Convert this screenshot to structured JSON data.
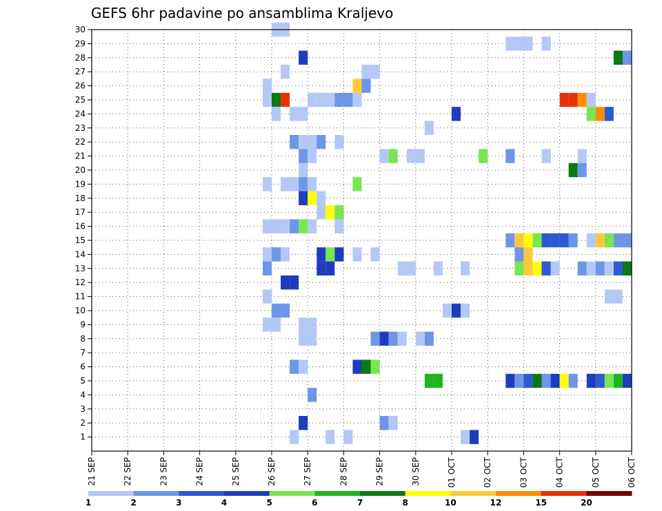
{
  "chart_data": {
    "type": "heatmap",
    "title": "GEFS 6hr padavine po ansamblima Kraljevo",
    "xlabel": "",
    "ylabel": "",
    "x_ticks": [
      "21 SEP",
      "22 SEP",
      "23 SEP",
      "24 SEP",
      "25 SEP",
      "26 SEP",
      "27 SEP",
      "28 SEP",
      "29 SEP",
      "30 SEP",
      "01 OCT",
      "02 OCT",
      "03 OCT",
      "04 OCT",
      "05 OCT",
      "06 OCT"
    ],
    "x_unit": "6-hour step from 21 SEP 00Z",
    "x_range": [
      0,
      60
    ],
    "y_ticks": [
      1,
      2,
      3,
      4,
      5,
      6,
      7,
      8,
      9,
      10,
      11,
      12,
      13,
      14,
      15,
      16,
      17,
      18,
      19,
      20,
      21,
      22,
      23,
      24,
      25,
      26,
      27,
      28,
      29,
      30
    ],
    "y_range": [
      0,
      30
    ],
    "colorbar": {
      "labels": [
        "1",
        "2",
        "3",
        "4",
        "5",
        "6",
        "7",
        "8",
        "10",
        "12",
        "15",
        "20"
      ],
      "colors": [
        "#b4c8f5",
        "#6e96e6",
        "#2d5ad2",
        "#1e3cbe",
        "#78e650",
        "#1eb41e",
        "#0a7814",
        "#ffff00",
        "#ffc83c",
        "#ff8c00",
        "#e6320a",
        "#780000"
      ]
    },
    "grid": "dotted",
    "cells": [
      {
        "x": 20.5,
        "y": 30,
        "v": 1
      },
      {
        "x": 21.5,
        "y": 30,
        "v": 1
      },
      {
        "x": 46.5,
        "y": 29,
        "v": 1
      },
      {
        "x": 47.5,
        "y": 29,
        "v": 1
      },
      {
        "x": 48.5,
        "y": 29,
        "v": 1
      },
      {
        "x": 50.5,
        "y": 29,
        "v": 1
      },
      {
        "x": 23.5,
        "y": 28,
        "v": 4
      },
      {
        "x": 58.5,
        "y": 28,
        "v": 7
      },
      {
        "x": 59.5,
        "y": 28,
        "v": 2
      },
      {
        "x": 21.5,
        "y": 27,
        "v": 1
      },
      {
        "x": 30.5,
        "y": 27,
        "v": 1
      },
      {
        "x": 31.5,
        "y": 27,
        "v": 1
      },
      {
        "x": 19.5,
        "y": 26,
        "v": 1
      },
      {
        "x": 29.5,
        "y": 26,
        "v": 10
      },
      {
        "x": 30.5,
        "y": 26,
        "v": 2
      },
      {
        "x": 19.5,
        "y": 25,
        "v": 1
      },
      {
        "x": 20.5,
        "y": 25,
        "v": 7
      },
      {
        "x": 21.5,
        "y": 25,
        "v": 15
      },
      {
        "x": 24.5,
        "y": 25,
        "v": 1
      },
      {
        "x": 25.5,
        "y": 25,
        "v": 1
      },
      {
        "x": 26.5,
        "y": 25,
        "v": 1
      },
      {
        "x": 27.5,
        "y": 25,
        "v": 2
      },
      {
        "x": 28.5,
        "y": 25,
        "v": 2
      },
      {
        "x": 29.5,
        "y": 25,
        "v": 1
      },
      {
        "x": 52.5,
        "y": 25,
        "v": 15
      },
      {
        "x": 53.5,
        "y": 25,
        "v": 15
      },
      {
        "x": 54.5,
        "y": 25,
        "v": 12
      },
      {
        "x": 55.5,
        "y": 25,
        "v": 1
      },
      {
        "x": 20.5,
        "y": 24,
        "v": 1
      },
      {
        "x": 22.5,
        "y": 24,
        "v": 1
      },
      {
        "x": 23.5,
        "y": 24,
        "v": 1
      },
      {
        "x": 40.5,
        "y": 24,
        "v": 4
      },
      {
        "x": 55.5,
        "y": 24,
        "v": 5
      },
      {
        "x": 56.5,
        "y": 24,
        "v": 12
      },
      {
        "x": 57.5,
        "y": 24,
        "v": 3
      },
      {
        "x": 37.5,
        "y": 23,
        "v": 1
      },
      {
        "x": 22.5,
        "y": 22,
        "v": 2
      },
      {
        "x": 23.5,
        "y": 22,
        "v": 1
      },
      {
        "x": 24.5,
        "y": 22,
        "v": 1
      },
      {
        "x": 25.5,
        "y": 22,
        "v": 2
      },
      {
        "x": 27.5,
        "y": 22,
        "v": 1
      },
      {
        "x": 23.5,
        "y": 21,
        "v": 2
      },
      {
        "x": 24.5,
        "y": 21,
        "v": 1
      },
      {
        "x": 32.5,
        "y": 21,
        "v": 1
      },
      {
        "x": 33.5,
        "y": 21,
        "v": 5
      },
      {
        "x": 35.5,
        "y": 21,
        "v": 1
      },
      {
        "x": 36.5,
        "y": 21,
        "v": 1
      },
      {
        "x": 43.5,
        "y": 21,
        "v": 5
      },
      {
        "x": 46.5,
        "y": 21,
        "v": 2
      },
      {
        "x": 50.5,
        "y": 21,
        "v": 1
      },
      {
        "x": 54.5,
        "y": 21,
        "v": 1
      },
      {
        "x": 23.5,
        "y": 20,
        "v": 1
      },
      {
        "x": 53.5,
        "y": 20,
        "v": 7
      },
      {
        "x": 54.5,
        "y": 20,
        "v": 2
      },
      {
        "x": 19.5,
        "y": 19,
        "v": 1
      },
      {
        "x": 21.5,
        "y": 19,
        "v": 1
      },
      {
        "x": 22.5,
        "y": 19,
        "v": 1
      },
      {
        "x": 23.5,
        "y": 19,
        "v": 2
      },
      {
        "x": 24.5,
        "y": 19,
        "v": 1
      },
      {
        "x": 29.5,
        "y": 19,
        "v": 5
      },
      {
        "x": 23.5,
        "y": 18,
        "v": 4
      },
      {
        "x": 24.5,
        "y": 18,
        "v": 8
      },
      {
        "x": 25.5,
        "y": 18,
        "v": 1
      },
      {
        "x": 25.5,
        "y": 17,
        "v": 1
      },
      {
        "x": 26.5,
        "y": 17,
        "v": 8
      },
      {
        "x": 27.5,
        "y": 17,
        "v": 5
      },
      {
        "x": 19.5,
        "y": 16,
        "v": 1
      },
      {
        "x": 20.5,
        "y": 16,
        "v": 1
      },
      {
        "x": 21.5,
        "y": 16,
        "v": 1
      },
      {
        "x": 22.5,
        "y": 16,
        "v": 2
      },
      {
        "x": 23.5,
        "y": 16,
        "v": 5
      },
      {
        "x": 24.5,
        "y": 16,
        "v": 1
      },
      {
        "x": 27.5,
        "y": 16,
        "v": 1
      },
      {
        "x": 46.5,
        "y": 15,
        "v": 2
      },
      {
        "x": 47.5,
        "y": 15,
        "v": 10
      },
      {
        "x": 48.5,
        "y": 15,
        "v": 8
      },
      {
        "x": 49.5,
        "y": 15,
        "v": 5
      },
      {
        "x": 50.5,
        "y": 15,
        "v": 3
      },
      {
        "x": 51.5,
        "y": 15,
        "v": 3
      },
      {
        "x": 52.5,
        "y": 15,
        "v": 3
      },
      {
        "x": 53.5,
        "y": 15,
        "v": 2
      },
      {
        "x": 55.5,
        "y": 15,
        "v": 1
      },
      {
        "x": 56.5,
        "y": 15,
        "v": 10
      },
      {
        "x": 57.5,
        "y": 15,
        "v": 5
      },
      {
        "x": 58.5,
        "y": 15,
        "v": 2
      },
      {
        "x": 59.5,
        "y": 15,
        "v": 2
      },
      {
        "x": 19.5,
        "y": 14,
        "v": 1
      },
      {
        "x": 20.5,
        "y": 14,
        "v": 2
      },
      {
        "x": 21.5,
        "y": 14,
        "v": 1
      },
      {
        "x": 25.5,
        "y": 14,
        "v": 4
      },
      {
        "x": 26.5,
        "y": 14,
        "v": 5
      },
      {
        "x": 27.5,
        "y": 14,
        "v": 4
      },
      {
        "x": 29.5,
        "y": 14,
        "v": 1
      },
      {
        "x": 31.5,
        "y": 14,
        "v": 1
      },
      {
        "x": 47.5,
        "y": 14,
        "v": 2
      },
      {
        "x": 48.5,
        "y": 14,
        "v": 10
      },
      {
        "x": 19.5,
        "y": 13,
        "v": 2
      },
      {
        "x": 25.5,
        "y": 13,
        "v": 4
      },
      {
        "x": 26.5,
        "y": 13,
        "v": 4
      },
      {
        "x": 34.5,
        "y": 13,
        "v": 1
      },
      {
        "x": 35.5,
        "y": 13,
        "v": 1
      },
      {
        "x": 38.5,
        "y": 13,
        "v": 1
      },
      {
        "x": 41.5,
        "y": 13,
        "v": 1
      },
      {
        "x": 47.5,
        "y": 13,
        "v": 5
      },
      {
        "x": 48.5,
        "y": 13,
        "v": 10
      },
      {
        "x": 49.5,
        "y": 13,
        "v": 8
      },
      {
        "x": 50.5,
        "y": 13,
        "v": 3
      },
      {
        "x": 51.5,
        "y": 13,
        "v": 1
      },
      {
        "x": 54.5,
        "y": 13,
        "v": 2
      },
      {
        "x": 55.5,
        "y": 13,
        "v": 1
      },
      {
        "x": 56.5,
        "y": 13,
        "v": 2
      },
      {
        "x": 57.5,
        "y": 13,
        "v": 1
      },
      {
        "x": 58.5,
        "y": 13,
        "v": 3
      },
      {
        "x": 59.5,
        "y": 13,
        "v": 7
      },
      {
        "x": 21.5,
        "y": 12,
        "v": 4
      },
      {
        "x": 22.5,
        "y": 12,
        "v": 4
      },
      {
        "x": 19.5,
        "y": 11,
        "v": 1
      },
      {
        "x": 57.5,
        "y": 11,
        "v": 1
      },
      {
        "x": 58.5,
        "y": 11,
        "v": 1
      },
      {
        "x": 20.5,
        "y": 10,
        "v": 2
      },
      {
        "x": 21.5,
        "y": 10,
        "v": 2
      },
      {
        "x": 39.5,
        "y": 10,
        "v": 1
      },
      {
        "x": 40.5,
        "y": 10,
        "v": 4
      },
      {
        "x": 41.5,
        "y": 10,
        "v": 1
      },
      {
        "x": 19.5,
        "y": 9,
        "v": 1
      },
      {
        "x": 20.5,
        "y": 9,
        "v": 1
      },
      {
        "x": 23.5,
        "y": 9,
        "v": 1
      },
      {
        "x": 24.5,
        "y": 9,
        "v": 1
      },
      {
        "x": 23.5,
        "y": 8,
        "v": 1
      },
      {
        "x": 24.5,
        "y": 8,
        "v": 1
      },
      {
        "x": 31.5,
        "y": 8,
        "v": 2
      },
      {
        "x": 32.5,
        "y": 8,
        "v": 4
      },
      {
        "x": 33.5,
        "y": 8,
        "v": 2
      },
      {
        "x": 34.5,
        "y": 8,
        "v": 1
      },
      {
        "x": 36.5,
        "y": 8,
        "v": 1
      },
      {
        "x": 37.5,
        "y": 8,
        "v": 2
      },
      {
        "x": 22.5,
        "y": 6,
        "v": 2
      },
      {
        "x": 23.5,
        "y": 6,
        "v": 1
      },
      {
        "x": 29.5,
        "y": 6,
        "v": 4
      },
      {
        "x": 30.5,
        "y": 6,
        "v": 7
      },
      {
        "x": 31.5,
        "y": 6,
        "v": 5
      },
      {
        "x": 37.5,
        "y": 5,
        "v": 6
      },
      {
        "x": 38.5,
        "y": 5,
        "v": 6
      },
      {
        "x": 46.5,
        "y": 5,
        "v": 4
      },
      {
        "x": 47.5,
        "y": 5,
        "v": 2
      },
      {
        "x": 48.5,
        "y": 5,
        "v": 3
      },
      {
        "x": 49.5,
        "y": 5,
        "v": 7
      },
      {
        "x": 50.5,
        "y": 5,
        "v": 2
      },
      {
        "x": 51.5,
        "y": 5,
        "v": 4
      },
      {
        "x": 52.5,
        "y": 5,
        "v": 8
      },
      {
        "x": 53.5,
        "y": 5,
        "v": 2
      },
      {
        "x": 55.5,
        "y": 5,
        "v": 4
      },
      {
        "x": 56.5,
        "y": 5,
        "v": 3
      },
      {
        "x": 57.5,
        "y": 5,
        "v": 5
      },
      {
        "x": 58.5,
        "y": 5,
        "v": 6
      },
      {
        "x": 59.5,
        "y": 5,
        "v": 4
      },
      {
        "x": 24.5,
        "y": 4,
        "v": 2
      },
      {
        "x": 23.5,
        "y": 2,
        "v": 4
      },
      {
        "x": 32.5,
        "y": 2,
        "v": 2
      },
      {
        "x": 33.5,
        "y": 2,
        "v": 1
      },
      {
        "x": 22.5,
        "y": 1,
        "v": 1
      },
      {
        "x": 26.5,
        "y": 1,
        "v": 1
      },
      {
        "x": 28.5,
        "y": 1,
        "v": 1
      },
      {
        "x": 41.5,
        "y": 1,
        "v": 1
      },
      {
        "x": 42.5,
        "y": 1,
        "v": 4
      }
    ]
  }
}
